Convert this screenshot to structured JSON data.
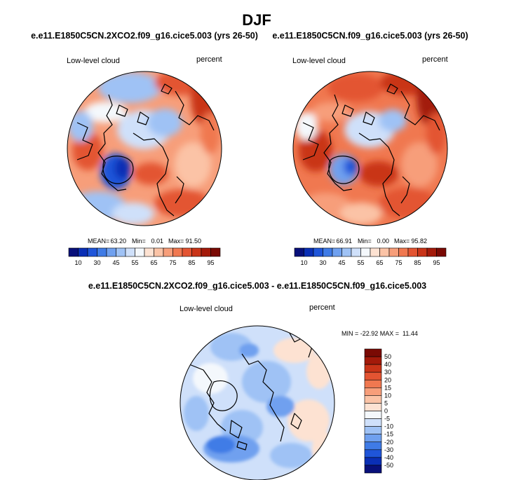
{
  "chart_data": {
    "type": "map-contour",
    "figure_title": "DJF",
    "panels": [
      {
        "id": "ctrl-2xco2",
        "title": "e.e11.E1850C5CN.2XCO2.f09_g16.cice5.003 (yrs 26-50)",
        "variable": "Low-level cloud",
        "units": "percent",
        "stats": {
          "mean_label": "MEAN=",
          "mean": "63.20",
          "min_label": "Min=",
          "min": "0.01",
          "max_label": "Max=",
          "max": "91.50"
        },
        "colorbar": {
          "orientation": "horizontal",
          "levels": [
            10,
            20,
            30,
            40,
            45,
            50,
            55,
            60,
            65,
            70,
            75,
            80,
            85,
            90,
            95
          ],
          "tick_labels": [
            "10",
            "30",
            "45",
            "55",
            "65",
            "75",
            "85",
            "95"
          ],
          "colors": [
            "#08107a",
            "#0a2fb5",
            "#1f55d9",
            "#3f7be6",
            "#6fa0ef",
            "#9fc2f5",
            "#cfe0fa",
            "#f4f8fc",
            "#fde2d2",
            "#fbc3a6",
            "#f79e7a",
            "#f07850",
            "#e35432",
            "#c93418",
            "#a31a0a",
            "#7a0a04"
          ]
        }
      },
      {
        "id": "ctrl",
        "title": "e.e11.E1850C5CN.f09_g16.cice5.003 (yrs 26-50)",
        "variable": "Low-level cloud",
        "units": "percent",
        "stats": {
          "mean_label": "MEAN=",
          "mean": "66.91",
          "min_label": "Min=",
          "min": "0.00",
          "max_label": "Max=",
          "max": "95.82"
        },
        "colorbar": {
          "orientation": "horizontal",
          "levels": [
            10,
            20,
            30,
            40,
            45,
            50,
            55,
            60,
            65,
            70,
            75,
            80,
            85,
            90,
            95
          ],
          "tick_labels": [
            "10",
            "30",
            "45",
            "55",
            "65",
            "75",
            "85",
            "95"
          ],
          "colors": [
            "#08107a",
            "#0a2fb5",
            "#1f55d9",
            "#3f7be6",
            "#6fa0ef",
            "#9fc2f5",
            "#cfe0fa",
            "#f4f8fc",
            "#fde2d2",
            "#fbc3a6",
            "#f79e7a",
            "#f07850",
            "#e35432",
            "#c93418",
            "#a31a0a",
            "#7a0a04"
          ]
        }
      },
      {
        "id": "difference",
        "title": "e.e11.E1850C5CN.2XCO2.f09_g16.cice5.003 - e.e11.E1850C5CN.f09_g16.cice5.003",
        "variable": "Low-level cloud",
        "units": "percent",
        "stats_text": "MIN = -22.92 MAX =  11.44",
        "colorbar": {
          "orientation": "vertical",
          "tick_labels": [
            "50",
            "40",
            "30",
            "20",
            "15",
            "10",
            "5",
            "0",
            "-5",
            "-10",
            "-15",
            "-20",
            "-30",
            "-40",
            "-50"
          ],
          "colors": [
            "#7a0a04",
            "#a31a0a",
            "#c93418",
            "#e35432",
            "#f07850",
            "#f79e7a",
            "#fbc3a6",
            "#fde2d2",
            "#f4f8fc",
            "#cfe0fa",
            "#9fc2f5",
            "#6fa0ef",
            "#3f7be6",
            "#1f55d9",
            "#0a2fb5",
            "#08107a"
          ]
        }
      }
    ]
  }
}
